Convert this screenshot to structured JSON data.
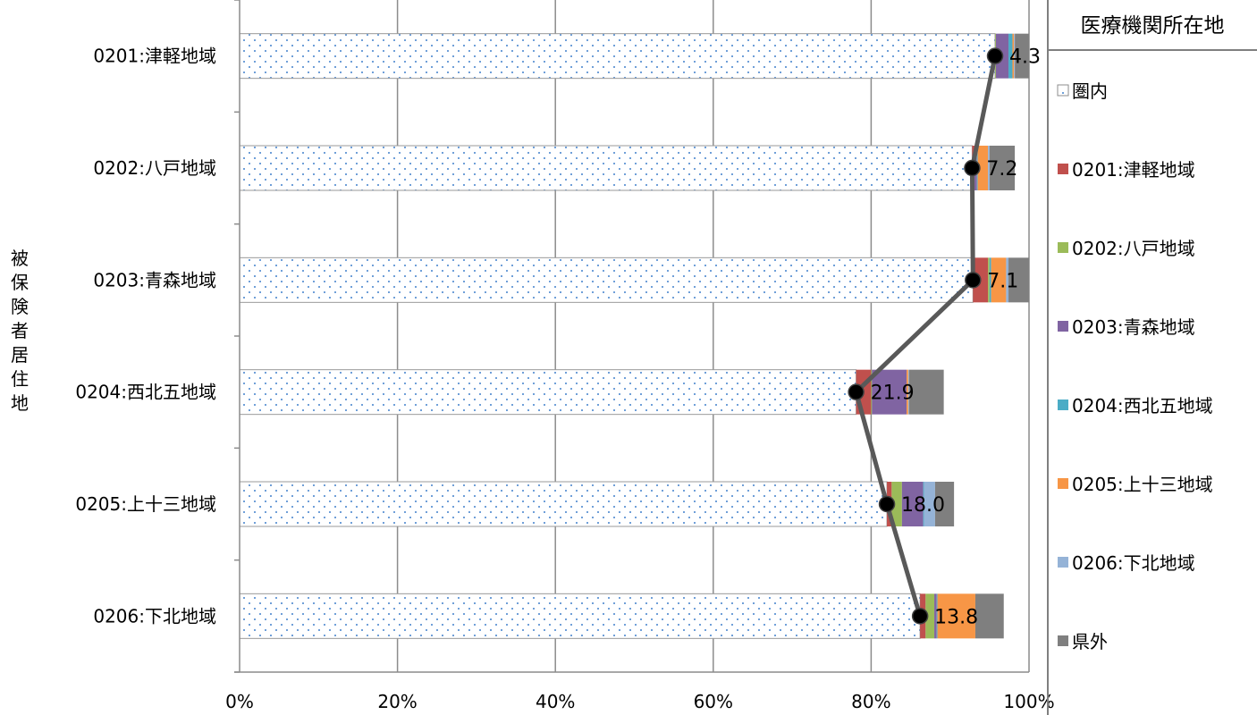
{
  "chart_data": {
    "type": "bar",
    "orientation": "horizontal",
    "stacked": "percent",
    "ylabel": "被保険者居住地",
    "categories": [
      "0201:津軽地域",
      "0202:八戸地域",
      "0203:青森地域",
      "0204:西北五地域",
      "0205:上十三地域",
      "0206:下北地域"
    ],
    "xlim": [
      0,
      100
    ],
    "x_ticks": [
      "0%",
      "20%",
      "40%",
      "60%",
      "80%",
      "100%"
    ],
    "grid": true,
    "legend": {
      "title": "医療機関所在地",
      "placement": "right",
      "entries": [
        "圏内",
        "0201:津軽地域",
        "0202:八戸地域",
        "0203:青森地域",
        "0204:西北五地域",
        "0205:上十三地域",
        "0206:下北地域",
        "県外"
      ]
    },
    "colors": [
      "#dce6f2",
      "#c0504d",
      "#9bbb59",
      "#8064a2",
      "#4bacc6",
      "#f79646",
      "#95b3d7",
      "#7f7f7f"
    ],
    "light_colors": [
      "#dce6f2",
      "#d99694",
      "#c4d79b",
      "#b1a0c7",
      "#93cddd",
      "#fac090",
      "#b9cde5",
      "#bfbfbf"
    ],
    "series": [
      {
        "name": "圏内",
        "values": [
          95.7,
          92.8,
          92.9,
          78.1,
          82.0,
          86.2
        ]
      },
      {
        "name": "0201:津軽地域",
        "values": [
          0.0,
          0.3,
          1.9,
          1.9,
          0.6,
          0.7
        ]
      },
      {
        "name": "0202:八戸地域",
        "values": [
          0.1,
          0.0,
          0.2,
          0.1,
          1.3,
          1.1
        ]
      },
      {
        "name": "0203:青森地域",
        "values": [
          1.6,
          0.3,
          0.0,
          4.4,
          2.7,
          0.3
        ]
      },
      {
        "name": "0204:西北五地域",
        "values": [
          0.5,
          0.1,
          0.2,
          0.0,
          0.1,
          0.1
        ]
      },
      {
        "name": "0205:上十三地域",
        "values": [
          0.2,
          1.3,
          1.9,
          0.2,
          0.0,
          4.8
        ]
      },
      {
        "name": "0206:下北地域",
        "values": [
          0.1,
          0.2,
          0.3,
          0.1,
          1.4,
          0.0
        ]
      },
      {
        "name": "県外",
        "values": [
          1.8,
          3.2,
          2.6,
          4.4,
          2.4,
          3.6
        ]
      }
    ],
    "own_region_index": [
      1,
      2,
      3,
      4,
      5,
      6
    ],
    "outflow_labels": [
      "4.3",
      "7.2",
      "7.1",
      "21.9",
      "18.0",
      "13.8"
    ],
    "line_values": [
      95.7,
      92.8,
      92.9,
      78.1,
      82.0,
      86.2
    ]
  }
}
